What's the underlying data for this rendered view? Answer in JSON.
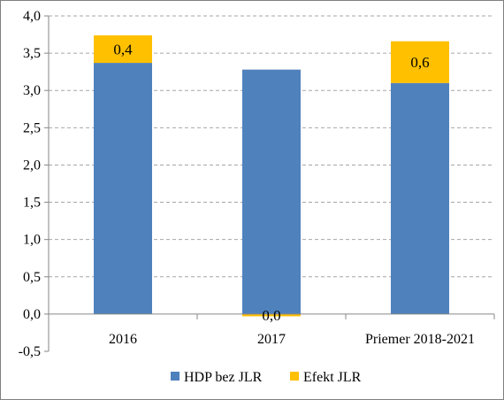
{
  "chart_data": {
    "type": "bar",
    "stacked": true,
    "categories": [
      "2016",
      "2017",
      "Priemer 2018-2021"
    ],
    "series": [
      {
        "name": "HDP bez JLR",
        "values": [
          3.37,
          3.28,
          3.1
        ],
        "color": "#4f81bd"
      },
      {
        "name": "Efekt JLR",
        "values": [
          0.37,
          -0.03,
          0.56
        ],
        "color": "#ffc000",
        "data_labels": [
          "0,4",
          "0,0",
          "0,6"
        ]
      }
    ],
    "yticks": [
      "-0,5",
      "0,0",
      "0,5",
      "1,0",
      "1,5",
      "2,0",
      "2,5",
      "3,0",
      "3,5",
      "4,0"
    ],
    "ylim": [
      -0.5,
      4.0
    ],
    "ytick_step": 0.5,
    "grid": true,
    "legend_position": "bottom"
  }
}
